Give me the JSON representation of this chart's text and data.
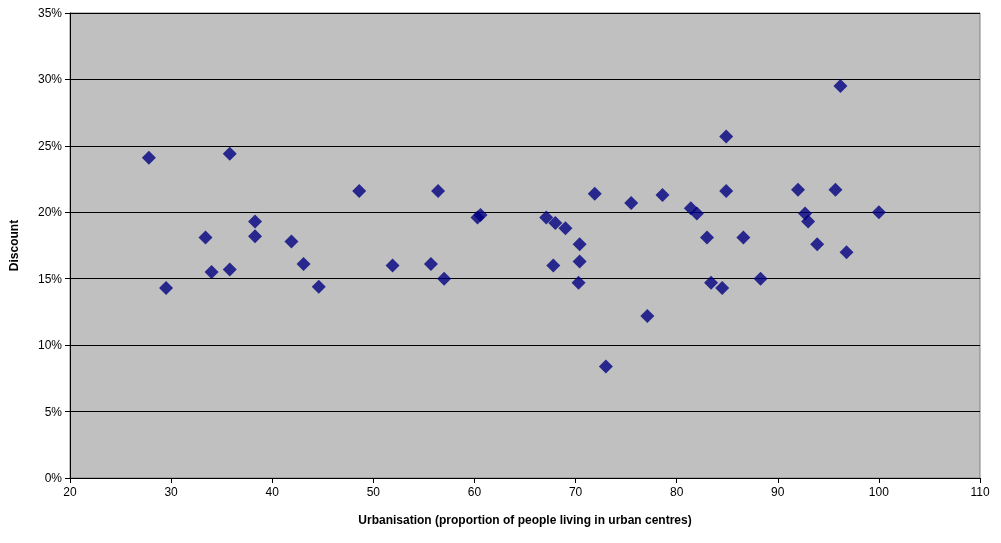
{
  "chart_data": {
    "type": "scatter",
    "xlabel": "Urbanisation (proportion of people living in urban centres)",
    "ylabel": "Discount",
    "x": [
      27.8,
      29.5,
      33.4,
      34.0,
      35.8,
      35.8,
      38.3,
      38.3,
      41.9,
      43.1,
      44.6,
      48.6,
      51.9,
      55.7,
      56.4,
      57.0,
      60.3,
      60.6,
      67.1,
      68.0,
      69.0,
      67.8,
      70.4,
      70.4,
      70.3,
      71.9,
      73.0,
      75.5,
      77.1,
      78.6,
      81.4,
      82.0,
      83.0,
      83.4,
      84.5,
      84.9,
      84.9,
      86.6,
      88.3,
      92.0,
      92.7,
      93.0,
      93.9,
      95.7,
      96.2,
      96.8,
      100.0
    ],
    "values": [
      24.1,
      14.3,
      18.1,
      15.5,
      24.4,
      15.7,
      19.3,
      18.2,
      17.8,
      16.1,
      14.4,
      21.6,
      16.0,
      16.1,
      21.6,
      15.0,
      19.6,
      19.8,
      19.6,
      19.2,
      18.8,
      16.0,
      17.6,
      16.3,
      14.7,
      21.4,
      8.4,
      20.7,
      12.2,
      21.3,
      20.3,
      19.9,
      18.1,
      14.7,
      14.3,
      25.7,
      21.6,
      18.1,
      15.0,
      21.7,
      19.9,
      19.3,
      17.6,
      21.7,
      29.5,
      17.0,
      20.0
    ],
    "color": "#000080",
    "marker": "diamond",
    "grid": "y",
    "xlim": [
      20,
      110
    ],
    "xticks": [
      20,
      30,
      40,
      50,
      60,
      70,
      80,
      90,
      100,
      110
    ],
    "ylim": [
      0,
      35
    ],
    "yticks": [
      {
        "value": 0,
        "label": "0%"
      },
      {
        "value": 5,
        "label": "5%"
      },
      {
        "value": 10,
        "label": "10%"
      },
      {
        "value": 15,
        "label": "15%"
      },
      {
        "value": 20,
        "label": "20%"
      },
      {
        "value": 25,
        "label": "25%"
      },
      {
        "value": 30,
        "label": "30%"
      },
      {
        "value": 35,
        "label": "35%"
      }
    ]
  }
}
